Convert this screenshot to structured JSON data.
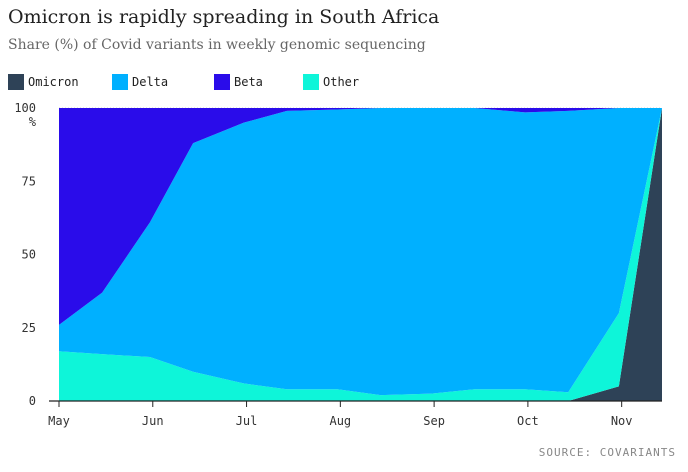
{
  "chart_data": {
    "type": "area",
    "stacked": true,
    "title": "Omicron is rapidly spreading in South Africa",
    "subtitle": "Share (%) of Covid variants in weekly genomic sequencing",
    "ylabel_unit": "%",
    "ylim": [
      0,
      100
    ],
    "yticks": [
      0,
      25,
      50,
      75,
      100
    ],
    "x_tick_labels": [
      "May",
      "Jun",
      "Jul",
      "Aug",
      "Sep",
      "Oct",
      "Nov"
    ],
    "x": [
      0,
      0.46,
      0.97,
      1.43,
      1.97,
      2.43,
      2.97,
      3.43,
      3.97,
      4.43,
      4.97,
      5.43,
      5.97,
      6.43
    ],
    "series": [
      {
        "name": "Omicron",
        "color": "#2e4257",
        "values": [
          0,
          0,
          0,
          0,
          0,
          0,
          0,
          0,
          0,
          0,
          0,
          0,
          5,
          100
        ]
      },
      {
        "name": "Other",
        "color": "#0ef5d9",
        "values": [
          17,
          16,
          15,
          10,
          6,
          4,
          4,
          2,
          2.5,
          4,
          4,
          3,
          25,
          0
        ]
      },
      {
        "name": "Delta",
        "color": "#00b0ff",
        "values": [
          9,
          21,
          46,
          78,
          89,
          95,
          95.5,
          98,
          97.5,
          96,
          94.5,
          96,
          70,
          0
        ]
      },
      {
        "name": "Beta",
        "color": "#2a0cea",
        "values": [
          74,
          63,
          39,
          12,
          5,
          1,
          0.5,
          0,
          0,
          0,
          1.5,
          1,
          0,
          0
        ]
      }
    ],
    "legend": [
      "Omicron",
      "Delta",
      "Beta",
      "Other"
    ],
    "source": "SOURCE: COVARIANTS"
  }
}
